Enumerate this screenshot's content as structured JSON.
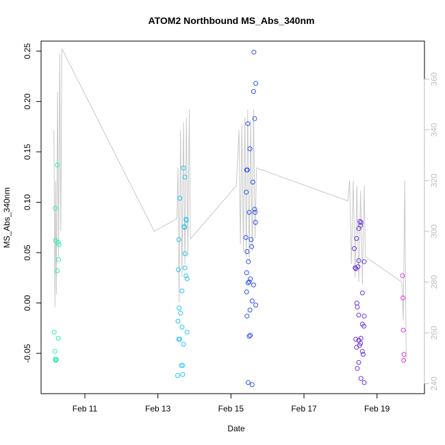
{
  "chart_data": {
    "type": "scatter",
    "title": "ATOM2 Northbound MS_Abs_340nm",
    "xlabel": "Date",
    "ylabel": "MS_Abs_340nm",
    "x_axis": {
      "range_days": [
        9.8,
        20.3
      ],
      "ticks": [
        {
          "value": 11,
          "label": "Feb 11"
        },
        {
          "value": 13,
          "label": "Feb 13"
        },
        {
          "value": 15,
          "label": "Feb 15"
        },
        {
          "value": 17,
          "label": "Feb 17"
        },
        {
          "value": 19,
          "label": "Feb 19"
        }
      ]
    },
    "y_axis": {
      "range": [
        -0.09,
        0.26
      ],
      "ticks": [
        -0.05,
        0.0,
        0.05,
        0.1,
        0.15,
        0.2,
        0.25
      ],
      "tick_labels": [
        "-0.05",
        "0.00",
        "0.05",
        "0.10",
        "0.15",
        "0.20",
        "0.25"
      ]
    },
    "y2_axis": {
      "range": [
        236,
        375
      ],
      "ticks": [
        240,
        260,
        280,
        300,
        320,
        340,
        360
      ],
      "tick_labels": [
        "240",
        "260",
        "280",
        "300",
        "320",
        "340",
        "360"
      ],
      "color": "#bdbdbd"
    },
    "line_series": {
      "color": "#c8c8c8",
      "axis": "y2",
      "points": [
        [
          10.15,
          340
        ],
        [
          10.18,
          270
        ],
        [
          10.2,
          320
        ],
        [
          10.22,
          275
        ],
        [
          10.25,
          355
        ],
        [
          10.28,
          290
        ],
        [
          10.31,
          370
        ],
        [
          10.34,
          300
        ],
        [
          10.37,
          372
        ],
        [
          12.9,
          300
        ],
        [
          13.52,
          305
        ],
        [
          13.55,
          325
        ],
        [
          13.58,
          272
        ],
        [
          13.62,
          340
        ],
        [
          13.66,
          282
        ],
        [
          13.7,
          343
        ],
        [
          13.74,
          287
        ],
        [
          13.78,
          345
        ],
        [
          13.82,
          290
        ],
        [
          13.86,
          348
        ],
        [
          13.89,
          297
        ],
        [
          15.15,
          318
        ],
        [
          15.22,
          340
        ],
        [
          15.26,
          295
        ],
        [
          15.3,
          342
        ],
        [
          15.34,
          292
        ],
        [
          15.38,
          345
        ],
        [
          15.42,
          290
        ],
        [
          15.46,
          348
        ],
        [
          15.5,
          288
        ],
        [
          15.54,
          344
        ],
        [
          15.58,
          292
        ],
        [
          15.62,
          348
        ],
        [
          15.66,
          297
        ],
        [
          15.7,
          325
        ],
        [
          18.2,
          312
        ],
        [
          18.25,
          320
        ],
        [
          18.3,
          287
        ],
        [
          18.35,
          320
        ],
        [
          18.4,
          282
        ],
        [
          18.45,
          318
        ],
        [
          18.5,
          280
        ],
        [
          18.55,
          316
        ],
        [
          18.6,
          279
        ],
        [
          18.65,
          318
        ],
        [
          18.68,
          290
        ],
        [
          19.68,
          280
        ],
        [
          19.72,
          265
        ],
        [
          19.76,
          320
        ],
        [
          19.8,
          250
        ]
      ]
    },
    "points": [
      {
        "x": 10.16,
        "y": -0.029,
        "color": "#20f0b0"
      },
      {
        "x": 10.18,
        "y": -0.048,
        "color": "#20f0b0"
      },
      {
        "x": 10.19,
        "y": -0.056,
        "color": "#20f0b0"
      },
      {
        "x": 10.2,
        "y": -0.057,
        "color": "#20f0b0"
      },
      {
        "x": 10.22,
        "y": -0.056,
        "color": "#20f0b0"
      },
      {
        "x": 10.24,
        "y": 0.032,
        "color": "#20f0b0"
      },
      {
        "x": 10.2,
        "y": 0.062,
        "color": "#20f0b0"
      },
      {
        "x": 10.19,
        "y": 0.094,
        "color": "#20f0b0"
      },
      {
        "x": 10.24,
        "y": 0.137,
        "color": "#20f0b0"
      },
      {
        "x": 10.27,
        "y": 0.06,
        "color": "#20f0b0"
      },
      {
        "x": 10.29,
        "y": 0.058,
        "color": "#20f0b0"
      },
      {
        "x": 10.28,
        "y": 0.043,
        "color": "#20f0b0"
      },
      {
        "x": 10.27,
        "y": -0.035,
        "color": "#20f0b0"
      },
      {
        "x": 13.54,
        "y": -0.072,
        "color": "#25c4ea"
      },
      {
        "x": 13.57,
        "y": -0.036,
        "color": "#25c4ea"
      },
      {
        "x": 13.55,
        "y": -0.018,
        "color": "#25c4ea"
      },
      {
        "x": 13.58,
        "y": -0.005,
        "color": "#25c4ea"
      },
      {
        "x": 13.6,
        "y": -0.036,
        "color": "#25c4ea"
      },
      {
        "x": 13.62,
        "y": -0.01,
        "color": "#25c4ea"
      },
      {
        "x": 13.64,
        "y": -0.062,
        "color": "#25c4ea"
      },
      {
        "x": 13.66,
        "y": -0.024,
        "color": "#25c4ea"
      },
      {
        "x": 13.68,
        "y": -0.062,
        "color": "#25c4ea"
      },
      {
        "x": 13.68,
        "y": -0.071,
        "color": "#25c4ea"
      },
      {
        "x": 13.7,
        "y": -0.041,
        "color": "#25c4ea"
      },
      {
        "x": 13.66,
        "y": 0.012,
        "color": "#25c4ea"
      },
      {
        "x": 13.56,
        "y": 0.033,
        "color": "#25c4ea"
      },
      {
        "x": 13.57,
        "y": 0.063,
        "color": "#25c4ea"
      },
      {
        "x": 13.6,
        "y": 0.104,
        "color": "#25c4ea"
      },
      {
        "x": 13.7,
        "y": 0.134,
        "color": "#25c4ea"
      },
      {
        "x": 13.74,
        "y": 0.125,
        "color": "#25c4ea"
      },
      {
        "x": 13.72,
        "y": 0.076,
        "color": "#25c4ea"
      },
      {
        "x": 13.73,
        "y": 0.075,
        "color": "#25c4ea"
      },
      {
        "x": 13.77,
        "y": 0.083,
        "color": "#25c4ea"
      },
      {
        "x": 13.78,
        "y": 0.082,
        "color": "#25c4ea"
      },
      {
        "x": 13.74,
        "y": 0.049,
        "color": "#25c4ea"
      },
      {
        "x": 13.74,
        "y": 0.035,
        "color": "#25c4ea"
      },
      {
        "x": 13.77,
        "y": 0.027,
        "color": "#25c4ea"
      },
      {
        "x": 13.8,
        "y": 0.024,
        "color": "#25c4ea"
      },
      {
        "x": 13.8,
        "y": -0.029,
        "color": "#25c4ea"
      },
      {
        "x": 15.41,
        "y": 0.065,
        "color": "#2b4ef0"
      },
      {
        "x": 15.42,
        "y": 0.11,
        "color": "#2b4ef0"
      },
      {
        "x": 15.43,
        "y": 0.132,
        "color": "#2b4ef0"
      },
      {
        "x": 15.45,
        "y": 0.132,
        "color": "#2b4ef0"
      },
      {
        "x": 15.46,
        "y": 0.178,
        "color": "#2b4ef0"
      },
      {
        "x": 15.44,
        "y": 0.051,
        "color": "#2b4ef0"
      },
      {
        "x": 15.48,
        "y": 0.041,
        "color": "#2b4ef0"
      },
      {
        "x": 15.5,
        "y": 0.09,
        "color": "#2b4ef0"
      },
      {
        "x": 15.52,
        "y": 0.153,
        "color": "#2b4ef0"
      },
      {
        "x": 15.55,
        "y": 0.063,
        "color": "#2b4ef0"
      },
      {
        "x": 15.57,
        "y": 0.056,
        "color": "#2b4ef0"
      },
      {
        "x": 15.6,
        "y": 0.12,
        "color": "#2b4ef0"
      },
      {
        "x": 15.62,
        "y": 0.21,
        "color": "#2b4ef0"
      },
      {
        "x": 15.63,
        "y": 0.249,
        "color": "#2b4ef0"
      },
      {
        "x": 15.65,
        "y": 0.183,
        "color": "#2b4ef0"
      },
      {
        "x": 15.68,
        "y": 0.218,
        "color": "#2b4ef0"
      },
      {
        "x": 15.65,
        "y": 0.093,
        "color": "#2b4ef0"
      },
      {
        "x": 15.66,
        "y": 0.09,
        "color": "#2b4ef0"
      },
      {
        "x": 15.67,
        "y": 0.08,
        "color": "#2b4ef0"
      },
      {
        "x": 15.43,
        "y": 0.03,
        "color": "#2b4ef0"
      },
      {
        "x": 15.47,
        "y": 0.02,
        "color": "#2b4ef0"
      },
      {
        "x": 15.5,
        "y": 0.021,
        "color": "#2b4ef0"
      },
      {
        "x": 15.53,
        "y": 0.024,
        "color": "#2b4ef0"
      },
      {
        "x": 15.43,
        "y": 0.011,
        "color": "#2b4ef0"
      },
      {
        "x": 15.62,
        "y": 0.018,
        "color": "#2b4ef0"
      },
      {
        "x": 15.58,
        "y": 0.002,
        "color": "#2b4ef0"
      },
      {
        "x": 15.68,
        "y": -0.002,
        "color": "#2b4ef0"
      },
      {
        "x": 15.52,
        "y": -0.007,
        "color": "#2b4ef0"
      },
      {
        "x": 15.44,
        "y": -0.013,
        "color": "#2b4ef0"
      },
      {
        "x": 15.5,
        "y": -0.033,
        "color": "#2b4ef0"
      },
      {
        "x": 15.53,
        "y": -0.032,
        "color": "#2b4ef0"
      },
      {
        "x": 15.47,
        "y": -0.079,
        "color": "#2b4ef0"
      },
      {
        "x": 15.58,
        "y": -0.081,
        "color": "#2b4ef0"
      },
      {
        "x": 18.38,
        "y": 0.054,
        "color": "#6a30e0"
      },
      {
        "x": 18.4,
        "y": 0.035,
        "color": "#6a30e0"
      },
      {
        "x": 18.42,
        "y": 0.034,
        "color": "#6a30e0"
      },
      {
        "x": 18.44,
        "y": 0.064,
        "color": "#6a30e0"
      },
      {
        "x": 18.48,
        "y": 0.036,
        "color": "#6a30e0"
      },
      {
        "x": 18.5,
        "y": 0.042,
        "color": "#6a30e0"
      },
      {
        "x": 18.53,
        "y": 0.081,
        "color": "#6a30e0"
      },
      {
        "x": 18.55,
        "y": 0.077,
        "color": "#6a30e0"
      },
      {
        "x": 18.56,
        "y": 0.08,
        "color": "#6a30e0"
      },
      {
        "x": 18.5,
        "y": 0.074,
        "color": "#6a30e0"
      },
      {
        "x": 18.65,
        "y": 0.041,
        "color": "#6a30e0"
      },
      {
        "x": 18.6,
        "y": 0.01,
        "color": "#6a30e0"
      },
      {
        "x": 18.45,
        "y": 0.0,
        "color": "#6a30e0"
      },
      {
        "x": 18.46,
        "y": -0.004,
        "color": "#6a30e0"
      },
      {
        "x": 18.5,
        "y": -0.012,
        "color": "#6a30e0"
      },
      {
        "x": 18.65,
        "y": -0.013,
        "color": "#6a30e0"
      },
      {
        "x": 18.6,
        "y": -0.021,
        "color": "#6a30e0"
      },
      {
        "x": 18.64,
        "y": -0.023,
        "color": "#6a30e0"
      },
      {
        "x": 18.42,
        "y": -0.036,
        "color": "#6a30e0"
      },
      {
        "x": 18.5,
        "y": -0.037,
        "color": "#6a30e0"
      },
      {
        "x": 18.56,
        "y": -0.035,
        "color": "#6a30e0"
      },
      {
        "x": 18.55,
        "y": -0.04,
        "color": "#6a30e0"
      },
      {
        "x": 18.52,
        "y": -0.042,
        "color": "#6a30e0"
      },
      {
        "x": 18.44,
        "y": -0.044,
        "color": "#6a30e0"
      },
      {
        "x": 18.6,
        "y": -0.048,
        "color": "#6a30e0"
      },
      {
        "x": 18.62,
        "y": -0.051,
        "color": "#6a30e0"
      },
      {
        "x": 18.5,
        "y": -0.059,
        "color": "#6a30e0"
      },
      {
        "x": 18.46,
        "y": -0.065,
        "color": "#6a30e0"
      },
      {
        "x": 18.56,
        "y": -0.075,
        "color": "#6a30e0"
      },
      {
        "x": 18.65,
        "y": -0.079,
        "color": "#6a30e0"
      },
      {
        "x": 19.7,
        "y": 0.027,
        "color": "#e030e0"
      },
      {
        "x": 19.71,
        "y": 0.005,
        "color": "#e030e0"
      },
      {
        "x": 19.72,
        "y": -0.027,
        "color": "#e030e0"
      },
      {
        "x": 19.74,
        "y": -0.051,
        "color": "#e030e0"
      },
      {
        "x": 19.73,
        "y": -0.057,
        "color": "#e030e0"
      }
    ]
  }
}
